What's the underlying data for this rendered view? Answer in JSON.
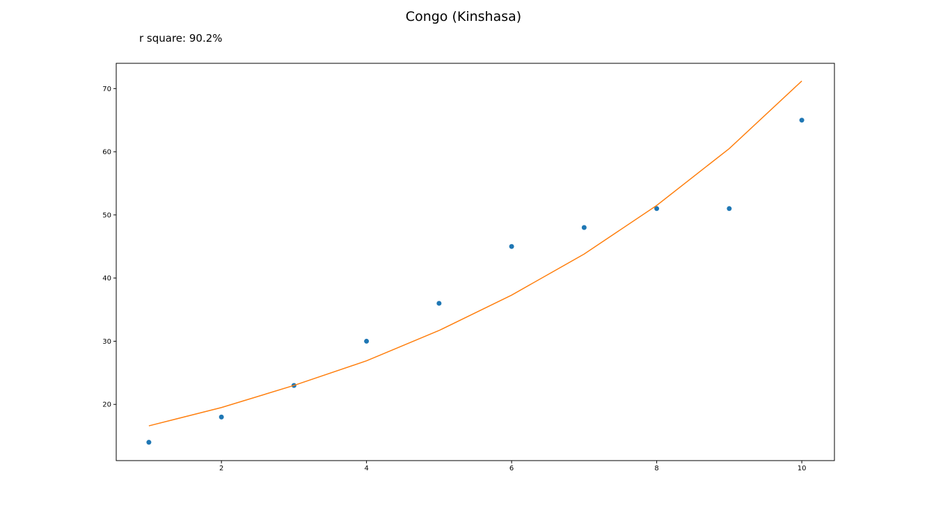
{
  "chart_data": {
    "type": "scatter",
    "title": "Congo (Kinshasa)",
    "subtitle": "r square: 90.2%",
    "xlabel": "",
    "ylabel": "",
    "xlim": [
      0.55,
      10.45
    ],
    "ylim": [
      11.1,
      74
    ],
    "xticks": [
      2,
      4,
      6,
      8,
      10
    ],
    "yticks": [
      20,
      30,
      40,
      50,
      60,
      70
    ],
    "grid": false,
    "series": [
      {
        "kind": "scatter",
        "color": "#1f77b4",
        "x": [
          1,
          2,
          3,
          4,
          5,
          6,
          7,
          8,
          9,
          10
        ],
        "y": [
          14,
          18,
          23,
          30,
          36,
          45,
          48,
          51,
          51,
          65
        ]
      },
      {
        "kind": "line",
        "color": "#ff7f0e",
        "x": [
          1,
          2,
          3,
          4,
          5,
          6,
          7,
          8,
          9,
          10
        ],
        "y": [
          16.6,
          19.5,
          23.0,
          26.9,
          31.7,
          37.3,
          43.8,
          51.5,
          60.5,
          71.2
        ]
      }
    ]
  }
}
